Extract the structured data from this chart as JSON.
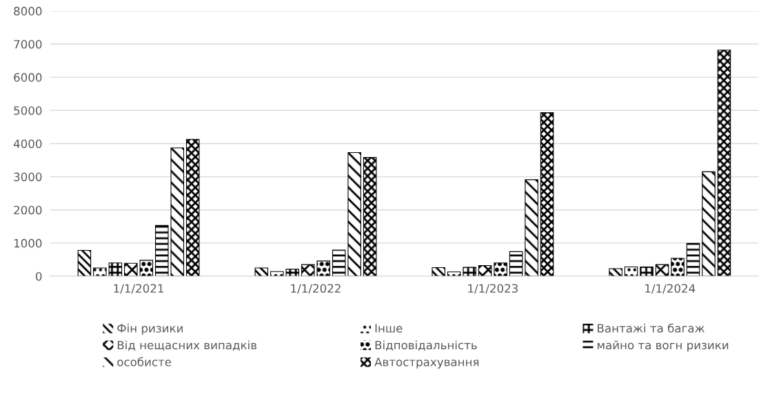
{
  "chart_data": {
    "type": "bar",
    "categories": [
      "1/1/2021",
      "1/1/2022",
      "1/1/2023",
      "1/1/2024"
    ],
    "series": [
      {
        "name": "Фін ризики",
        "color": "#000000",
        "values": [
          780,
          250,
          260,
          230
        ]
      },
      {
        "name": "Інше",
        "color": "#000000",
        "values": [
          250,
          140,
          130,
          280
        ]
      },
      {
        "name": "Вантажі та багаж",
        "color": "#000000",
        "values": [
          400,
          210,
          270,
          280
        ]
      },
      {
        "name": "Від нещасних випадків",
        "color": "#000000",
        "values": [
          390,
          350,
          320,
          350
        ]
      },
      {
        "name": "Відповідальність",
        "color": "#000000",
        "values": [
          480,
          460,
          400,
          540
        ]
      },
      {
        "name": "майно та вогн ризики",
        "color": "#000000",
        "values": [
          1530,
          790,
          740,
          990
        ]
      },
      {
        "name": "особисте",
        "color": "#000000",
        "values": [
          3870,
          3730,
          2910,
          3150
        ]
      },
      {
        "name": "Автострахування",
        "color": "#000000",
        "values": [
          4130,
          3580,
          4930,
          6820
        ]
      }
    ],
    "ylim": [
      0,
      8000
    ],
    "yticks": [
      0,
      1000,
      2000,
      3000,
      4000,
      5000,
      6000,
      7000,
      8000
    ],
    "grid": "y",
    "legend": "bottom"
  }
}
